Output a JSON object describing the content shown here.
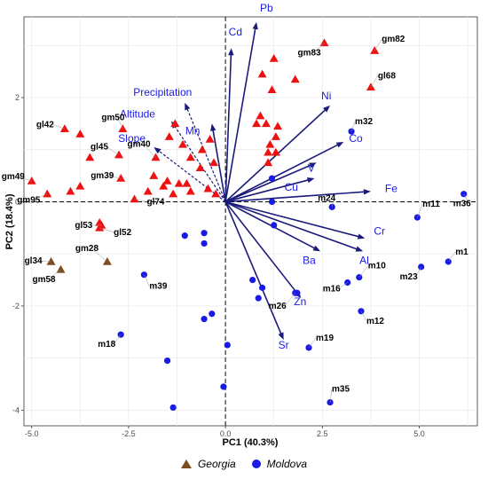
{
  "chart_data": {
    "type": "scatter",
    "xlabel": "PC1 (40.3%)",
    "ylabel": "PC2 (18.4%)",
    "xlim": [
      -5.2,
      6.5
    ],
    "ylim": [
      -4.3,
      3.55
    ],
    "x_ticks": [
      "-5.0",
      "-2.5",
      "0.0",
      "2.5",
      "5.0"
    ],
    "y_ticks": [
      "-4",
      "-2",
      "0",
      "2"
    ],
    "x_tick_values": [
      -5,
      -2.5,
      0,
      2.5,
      5
    ],
    "y_tick_values": [
      -4,
      -2,
      0,
      2
    ],
    "grid": true,
    "legend_position": "bottom",
    "colors": {
      "georgia": "#7b4a1e",
      "moldova": "#1a1ae6",
      "unlabeled_triangle": "#ee1111",
      "loading_arrow": "#1b1b7a",
      "loading_label": "#1a1ae6"
    },
    "series": [
      {
        "name": "Georgia",
        "marker": "triangle",
        "points": [
          {
            "label": "gl34",
            "x": -4.5,
            "y": -1.15
          },
          {
            "label": "gm58",
            "x": -4.25,
            "y": -1.3
          },
          {
            "label": "gm28",
            "x": -3.05,
            "y": -1.15
          },
          {
            "label": "gm82",
            "x": 3.85,
            "y": 2.9
          },
          {
            "label": "gm83",
            "x": 2.55,
            "y": 3.05
          },
          {
            "label": "gl68",
            "x": 3.75,
            "y": 2.2
          },
          {
            "label": "gl42",
            "x": -4.15,
            "y": 1.4
          },
          {
            "label": "gm50",
            "x": -2.65,
            "y": 1.4
          },
          {
            "label": "gl45",
            "x": -2.75,
            "y": 0.9
          },
          {
            "label": "gm40",
            "x": -1.8,
            "y": 0.85
          },
          {
            "label": "gm49",
            "x": -5.0,
            "y": 0.4
          },
          {
            "label": "gm39",
            "x": -2.7,
            "y": 0.45
          },
          {
            "label": "gm95",
            "x": -4.6,
            "y": 0.15
          },
          {
            "label": "gl74",
            "x": -2.35,
            "y": 0.05
          },
          {
            "label": "gl53",
            "x": -3.2,
            "y": -0.45
          },
          {
            "label": "gl52",
            "x": -3.25,
            "y": -0.5
          }
        ]
      },
      {
        "name": "Moldova",
        "marker": "circle",
        "points": [
          {
            "label": "m32",
            "x": 3.25,
            "y": 1.35
          },
          {
            "label": "m24",
            "x": 2.75,
            "y": -0.1
          },
          {
            "label": "m11",
            "x": 4.95,
            "y": -0.3
          },
          {
            "label": "m36",
            "x": 6.15,
            "y": 0.15
          },
          {
            "label": "m1",
            "x": 5.75,
            "y": -1.15
          },
          {
            "label": "m23",
            "x": 5.05,
            "y": -1.25
          },
          {
            "label": "m10",
            "x": 3.45,
            "y": -1.45
          },
          {
            "label": "m16",
            "x": 3.15,
            "y": -1.55
          },
          {
            "label": "m26",
            "x": 1.8,
            "y": -1.75
          },
          {
            "label": "m12",
            "x": 3.5,
            "y": -2.1
          },
          {
            "label": "m19",
            "x": 2.15,
            "y": -2.8
          },
          {
            "label": "m35",
            "x": 2.7,
            "y": -3.85
          },
          {
            "label": "m39",
            "x": -2.1,
            "y": -1.4
          },
          {
            "label": "m18",
            "x": -2.7,
            "y": -2.55
          }
        ]
      }
    ],
    "unlabeled_triangles": [
      {
        "x": 1.25,
        "y": 2.75
      },
      {
        "x": 0.95,
        "y": 2.45
      },
      {
        "x": 1.8,
        "y": 2.35
      },
      {
        "x": 1.2,
        "y": 2.15
      },
      {
        "x": 0.9,
        "y": 1.65
      },
      {
        "x": 0.8,
        "y": 1.5
      },
      {
        "x": 1.05,
        "y": 1.5
      },
      {
        "x": 1.35,
        "y": 1.45
      },
      {
        "x": 1.3,
        "y": 1.25
      },
      {
        "x": 1.15,
        "y": 1.1
      },
      {
        "x": 1.1,
        "y": 0.95
      },
      {
        "x": 1.3,
        "y": 0.95
      },
      {
        "x": 1.1,
        "y": 0.75
      },
      {
        "x": -3.75,
        "y": 1.3
      },
      {
        "x": -1.3,
        "y": 1.5
      },
      {
        "x": -1.45,
        "y": 1.25
      },
      {
        "x": -1.1,
        "y": 1.1
      },
      {
        "x": -0.4,
        "y": 1.2
      },
      {
        "x": -0.6,
        "y": 1.0
      },
      {
        "x": -0.9,
        "y": 0.85
      },
      {
        "x": -0.3,
        "y": 0.75
      },
      {
        "x": -3.5,
        "y": 0.85
      },
      {
        "x": -1.85,
        "y": 0.5
      },
      {
        "x": -0.65,
        "y": 0.65
      },
      {
        "x": -3.75,
        "y": 0.3
      },
      {
        "x": -4.0,
        "y": 0.2
      },
      {
        "x": -2.0,
        "y": 0.2
      },
      {
        "x": -1.6,
        "y": 0.3
      },
      {
        "x": -1.5,
        "y": 0.4
      },
      {
        "x": -1.2,
        "y": 0.35
      },
      {
        "x": -1.0,
        "y": 0.35
      },
      {
        "x": -0.9,
        "y": 0.2
      },
      {
        "x": -1.35,
        "y": 0.15
      },
      {
        "x": -0.45,
        "y": 0.25
      },
      {
        "x": -0.25,
        "y": 0.15
      },
      {
        "x": -3.25,
        "y": -0.4
      }
    ],
    "unlabeled_circles": [
      {
        "x": 1.2,
        "y": 0.45
      },
      {
        "x": 1.2,
        "y": 0.0
      },
      {
        "x": 1.25,
        "y": -0.45
      },
      {
        "x": -1.05,
        "y": -0.65
      },
      {
        "x": -0.55,
        "y": -0.6
      },
      {
        "x": -0.55,
        "y": -0.8
      },
      {
        "x": 0.7,
        "y": -1.5
      },
      {
        "x": 0.95,
        "y": -1.65
      },
      {
        "x": 1.85,
        "y": -1.75
      },
      {
        "x": 0.85,
        "y": -1.85
      },
      {
        "x": -0.35,
        "y": -2.15
      },
      {
        "x": -0.55,
        "y": -2.25
      },
      {
        "x": 0.05,
        "y": -2.75
      },
      {
        "x": -1.5,
        "y": -3.05
      },
      {
        "x": -0.05,
        "y": -3.55
      },
      {
        "x": -1.35,
        "y": -3.95
      }
    ],
    "loadings": [
      {
        "name": "Pb",
        "x": 0.8,
        "y": 3.45
      },
      {
        "name": "Cd",
        "x": 0.15,
        "y": 2.95
      },
      {
        "name": "Ni",
        "x": 2.7,
        "y": 1.85
      },
      {
        "name": "Co",
        "x": 3.05,
        "y": 1.15
      },
      {
        "name": "V",
        "x": 2.35,
        "y": 0.75
      },
      {
        "name": "Cu",
        "x": 2.3,
        "y": 0.45
      },
      {
        "name": "Fe",
        "x": 3.75,
        "y": 0.2
      },
      {
        "name": "Cr",
        "x": 3.6,
        "y": -0.7
      },
      {
        "name": "Ba",
        "x": 2.45,
        "y": -0.95
      },
      {
        "name": "Al",
        "x": 3.55,
        "y": -0.95
      },
      {
        "name": "Zn",
        "x": 1.95,
        "y": -1.85
      },
      {
        "name": "Sr",
        "x": 1.5,
        "y": -2.65
      },
      {
        "name": "Mn",
        "x": -0.35,
        "y": 1.5
      }
    ],
    "dashed_loadings": [
      {
        "name": "Precipitation",
        "x": -1.05,
        "y": 1.9
      },
      {
        "name": "Altitude",
        "x": -1.4,
        "y": 1.55
      },
      {
        "name": "Slope",
        "x": -1.85,
        "y": 1.05
      }
    ]
  }
}
